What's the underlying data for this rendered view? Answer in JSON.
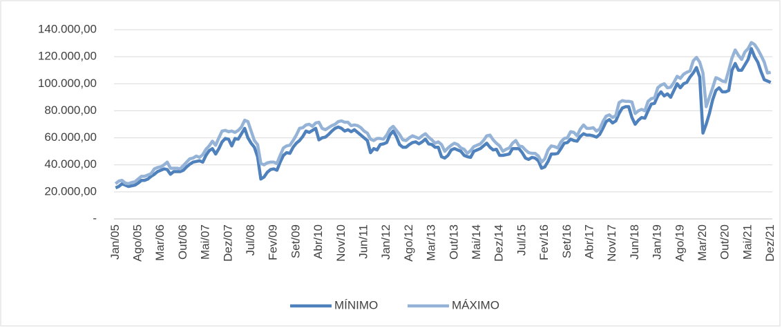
{
  "chart_data": {
    "type": "line",
    "categories": [
      "Jan/05",
      null,
      null,
      null,
      null,
      null,
      null,
      "Ago/05",
      null,
      null,
      null,
      null,
      null,
      null,
      "Mar/06",
      null,
      null,
      null,
      null,
      null,
      null,
      "Out/06",
      null,
      null,
      null,
      null,
      null,
      null,
      "Mai/07",
      null,
      null,
      null,
      null,
      null,
      null,
      "Dez/07",
      null,
      null,
      null,
      null,
      null,
      null,
      "Jul/08",
      null,
      null,
      null,
      null,
      null,
      null,
      "Fev/09",
      null,
      null,
      null,
      null,
      null,
      null,
      "Set/09",
      null,
      null,
      null,
      null,
      null,
      null,
      "Abr/10",
      null,
      null,
      null,
      null,
      null,
      null,
      "Nov/10",
      null,
      null,
      null,
      null,
      null,
      null,
      "Jun/11",
      null,
      null,
      null,
      null,
      null,
      null,
      "Jan/12",
      null,
      null,
      null,
      null,
      null,
      null,
      "Ago/12",
      null,
      null,
      null,
      null,
      null,
      null,
      "Mar/13",
      null,
      null,
      null,
      null,
      null,
      null,
      "Out/13",
      null,
      null,
      null,
      null,
      null,
      null,
      "Mai/14",
      null,
      null,
      null,
      null,
      null,
      null,
      "Dez/14",
      null,
      null,
      null,
      null,
      null,
      null,
      "Jul/15",
      null,
      null,
      null,
      null,
      null,
      null,
      "Fev/16",
      null,
      null,
      null,
      null,
      null,
      null,
      "Set/16",
      null,
      null,
      null,
      null,
      null,
      null,
      "Abr/17",
      null,
      null,
      null,
      null,
      null,
      null,
      "Nov/17",
      null,
      null,
      null,
      null,
      null,
      null,
      "Jun/18",
      null,
      null,
      null,
      null,
      null,
      null,
      "Jan/19",
      null,
      null,
      null,
      null,
      null,
      null,
      "Ago/19",
      null,
      null,
      null,
      null,
      null,
      null,
      "Mar/20",
      null,
      null,
      null,
      null,
      null,
      null,
      "Out/20",
      null,
      null,
      null,
      null,
      null,
      null,
      "Mai/21",
      null,
      null,
      null,
      null,
      null,
      null,
      "Dez/21"
    ],
    "series": [
      {
        "name": "MÍNIMO",
        "color": "#4f81bd",
        "values": [
          23000,
          24000,
          26000,
          25000,
          24000,
          24500,
          25000,
          26500,
          28500,
          28500,
          29500,
          31500,
          33000,
          35000,
          36000,
          37000,
          36500,
          33000,
          35000,
          35000,
          35000,
          36000,
          38500,
          40500,
          42000,
          42500,
          43000,
          42000,
          47000,
          50500,
          52000,
          48000,
          52000,
          57000,
          59500,
          59000,
          54000,
          59500,
          59000,
          63000,
          67000,
          60000,
          56000,
          53000,
          46000,
          29500,
          31000,
          34500,
          36500,
          37000,
          36000,
          42000,
          47000,
          49000,
          48500,
          53000,
          56000,
          58000,
          61000,
          65000,
          64000,
          65500,
          67000,
          58500,
          60000,
          60500,
          62500,
          65000,
          67000,
          68000,
          67000,
          65000,
          66000,
          64500,
          66000,
          64000,
          62000,
          60000,
          58000,
          49000,
          52000,
          51000,
          55000,
          55500,
          56500,
          62000,
          65000,
          61000,
          55000,
          53000,
          53000,
          55000,
          56500,
          57000,
          55500,
          57000,
          59000,
          55500,
          55000,
          53000,
          53000,
          46000,
          45000,
          47000,
          51000,
          52000,
          51000,
          50000,
          47000,
          46000,
          45500,
          50000,
          51000,
          52000,
          54000,
          56000,
          53000,
          51000,
          51500,
          47000,
          47000,
          47500,
          48000,
          52000,
          52000,
          52000,
          49000,
          45000,
          44000,
          45500,
          45000,
          43000,
          37500,
          38500,
          42500,
          48000,
          48000,
          48500,
          52000,
          56000,
          56500,
          59000,
          58000,
          57500,
          61000,
          63000,
          62000,
          62000,
          61500,
          60500,
          62500,
          67000,
          72000,
          73500,
          71000,
          72500,
          78000,
          82000,
          83000,
          83000,
          75000,
          70000,
          73000,
          75000,
          74500,
          80000,
          85000,
          85500,
          91000,
          94000,
          91000,
          92500,
          90000,
          95000,
          100000,
          97000,
          100000,
          101000,
          105000,
          108000,
          112000,
          105000,
          63500,
          70000,
          78000,
          88000,
          95000,
          97000,
          94000,
          94000,
          95000,
          110000,
          115000,
          110000,
          110000,
          114000,
          118000,
          126000,
          120000,
          116000,
          109000,
          103000,
          102000,
          101000
        ]
      },
      {
        "name": "MÁXIMO",
        "color": "#95b3d7",
        "values": [
          26000,
          28000,
          28500,
          26500,
          26000,
          27000,
          27500,
          29500,
          31500,
          31500,
          32500,
          33500,
          37000,
          38000,
          38500,
          40000,
          42000,
          37500,
          37500,
          37500,
          37000,
          39500,
          42000,
          44500,
          45000,
          46500,
          45500,
          47500,
          51500,
          54000,
          57500,
          54500,
          60000,
          65000,
          65500,
          64500,
          65000,
          64000,
          65500,
          68000,
          73000,
          72000,
          65000,
          58000,
          55000,
          41000,
          40000,
          41500,
          42000,
          42000,
          41000,
          47000,
          52500,
          54000,
          54500,
          58000,
          62000,
          67000,
          67500,
          69500,
          70000,
          68500,
          71000,
          71500,
          67000,
          66000,
          67500,
          69000,
          70000,
          72000,
          72500,
          71500,
          71500,
          69000,
          69500,
          69000,
          67500,
          65000,
          63500,
          59000,
          58000,
          59500,
          59500,
          59000,
          62000,
          66500,
          68500,
          65500,
          62500,
          58500,
          58000,
          60000,
          61500,
          60500,
          59500,
          61500,
          63000,
          60500,
          58500,
          56000,
          57000,
          55000,
          50000,
          52500,
          54500,
          56000,
          55000,
          52500,
          51500,
          48500,
          50500,
          53500,
          54500,
          55500,
          58000,
          61500,
          62000,
          58500,
          56000,
          54000,
          50000,
          51500,
          52500,
          56000,
          58000,
          54000,
          53500,
          51000,
          49000,
          48500,
          48500,
          46500,
          42000,
          44500,
          51000,
          54000,
          53500,
          52500,
          57000,
          59500,
          60000,
          64500,
          64000,
          61500,
          66500,
          69500,
          67000,
          67000,
          67500,
          65000,
          66500,
          72000,
          76000,
          77000,
          75000,
          76500,
          86000,
          87500,
          87000,
          87000,
          86500,
          78000,
          80000,
          81000,
          80000,
          87000,
          89000,
          89500,
          97000,
          99000,
          100000,
          97000,
          97500,
          101000,
          105500,
          104000,
          107000,
          108500,
          109500,
          117000,
          119500,
          116000,
          108000,
          83000,
          90000,
          97000,
          104500,
          103500,
          102000,
          101500,
          110000,
          119000,
          125000,
          121000,
          118000,
          123500,
          126000,
          130500,
          129000,
          125500,
          121000,
          116000,
          108000,
          108500
        ]
      }
    ],
    "ylim": [
      0,
      140000
    ],
    "yticks": [
      {
        "value": 0,
        "label": "-"
      },
      {
        "value": 20000,
        "label": "20.000,00"
      },
      {
        "value": 40000,
        "label": "40.000,00"
      },
      {
        "value": 60000,
        "label": "60.000,00"
      },
      {
        "value": 80000,
        "label": "80.000,00"
      },
      {
        "value": 100000,
        "label": "100.000,00"
      },
      {
        "value": 120000,
        "label": "120.000,00"
      },
      {
        "value": 140000,
        "label": "140.000,00"
      }
    ],
    "grid": true,
    "legend": "bottom"
  }
}
